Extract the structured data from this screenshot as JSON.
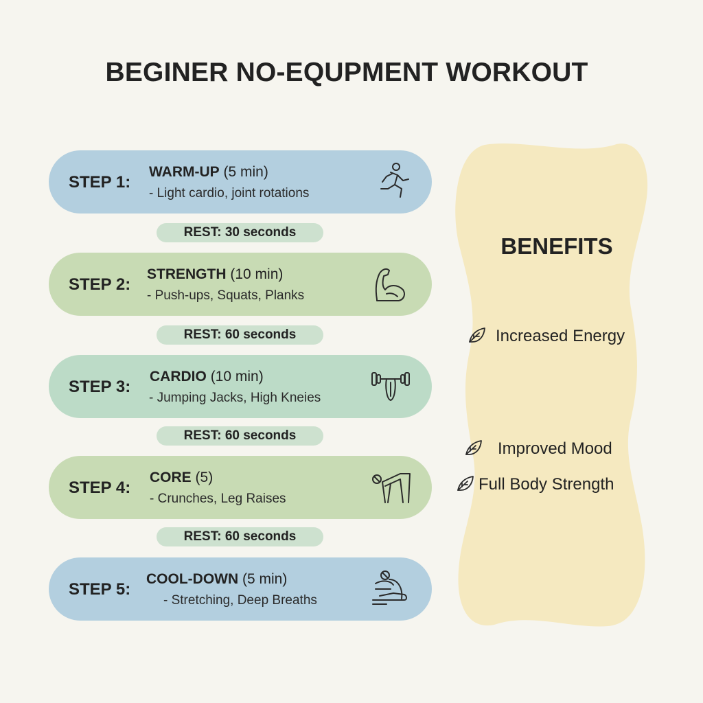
{
  "title": "BEGINER NO-EQUPMENT WORKOUT",
  "steps": [
    {
      "label": "STEP 1:",
      "name": "WARM-UP",
      "duration": "(5 min)",
      "description": "- Light cardio, joint rotations",
      "icon": "running-person-icon",
      "color": "#b3cfdf"
    },
    {
      "label": "STEP 2:",
      "name": "STRENGTH",
      "duration": "(10 min)",
      "description": "- Push-ups, Squats, Planks",
      "icon": "flexed-bicep-icon",
      "color": "#c8dbb4"
    },
    {
      "label": "STEP 3:",
      "name": "CARDIO",
      "duration": "(10 min)",
      "description": "- Jumping Jacks, High Kneies",
      "icon": "dumbbell-icon",
      "color": "#bcdbc7"
    },
    {
      "label": "STEP 4:",
      "name": "CORE",
      "duration": "(5)",
      "description": "- Crunches, Leg Raises",
      "icon": "crunch-person-icon",
      "color": "#c8dbb4"
    },
    {
      "label": "STEP 5:",
      "name": "COOL-DOWN",
      "duration": "(5 min)",
      "description": "- Stretching, Deep Breaths",
      "icon": "stretching-person-icon",
      "color": "#b3cfdf"
    }
  ],
  "rests": [
    "REST: 30 seconds",
    "REST: 60 seconds",
    "REST: 60 seconds",
    "REST: 60 seconds"
  ],
  "benefits": {
    "title": "BENEFITS",
    "items": [
      "Increased Energy",
      "Improved Mood",
      "Full Body Strength"
    ],
    "icon": "leaf-icon",
    "color": "#f5e9c0"
  }
}
